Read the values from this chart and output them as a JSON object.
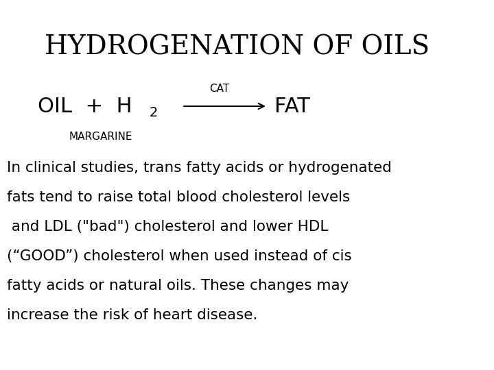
{
  "title": "HYDROGENATION OF OILS",
  "title_fontsize": 28,
  "background_color": "#ffffff",
  "eq_oil_text": "OIL  +  H",
  "eq_sub2": "2",
  "eq_cat": "CAT",
  "eq_fat": "FAT",
  "eq_font": 22,
  "cat_font": 11,
  "margarine_text": "MARGARINE",
  "margarine_font": 11,
  "body_lines": [
    "In clinical studies, trans fatty acids or hydrogenated",
    "fats tend to raise total blood cholesterol levels",
    " and LDL (\"bad\") cholesterol and lower HDL",
    "(“GOOD”) cholesterol when used instead of cis",
    "fatty acids or natural oils. These changes may",
    "increase the risk of heart disease."
  ],
  "body_fontsize": 15.5
}
